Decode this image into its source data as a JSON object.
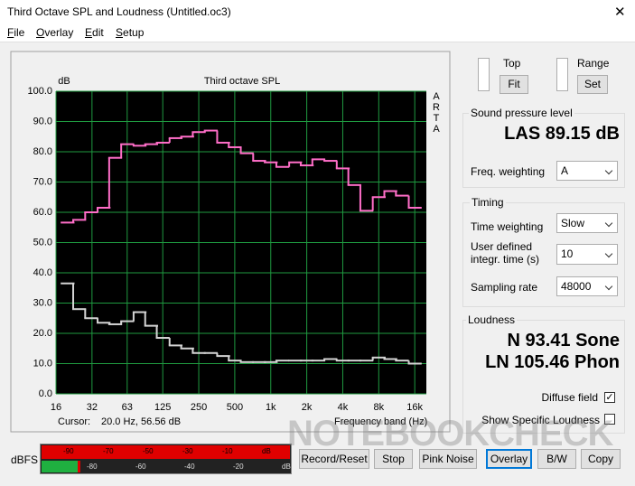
{
  "window": {
    "title": "Third Octave SPL and Loudness (Untitled.oc3)"
  },
  "menu": [
    "File",
    "Overlay",
    "Edit",
    "Setup"
  ],
  "chart_data": {
    "type": "line",
    "step": true,
    "title": "Third octave SPL",
    "y_label": "dB",
    "side_label": "ARTA",
    "x_label": "Frequency band (Hz)",
    "x_scale": "log",
    "grid": true,
    "background": "#000000",
    "grid_color": "#1f9a40",
    "x": [
      20,
      25,
      31.5,
      40,
      50,
      63,
      80,
      100,
      125,
      160,
      200,
      250,
      315,
      400,
      500,
      630,
      800,
      1000,
      1250,
      1600,
      2000,
      2500,
      3150,
      4000,
      5000,
      6300,
      8000,
      10000,
      12500,
      16000
    ],
    "series": [
      {
        "name": "SPL",
        "color": "#ff6ec8",
        "values": [
          56.6,
          57.5,
          60,
          61.5,
          78,
          82.5,
          82,
          82.5,
          83,
          84.5,
          85,
          86.5,
          87,
          83,
          81.5,
          79.5,
          77,
          76.5,
          75,
          76.5,
          75.5,
          77.5,
          77,
          74.5,
          69,
          60.5,
          65,
          67,
          65.5,
          61.5
        ]
      },
      {
        "name": "Noise floor",
        "color": "#d4d4d4",
        "values": [
          36.5,
          28,
          25,
          23.5,
          23,
          24,
          27,
          22.5,
          18.5,
          16,
          15,
          13.5,
          13.5,
          12.5,
          11,
          10.5,
          10.5,
          10.5,
          11,
          11,
          11,
          11,
          11.5,
          11,
          11,
          11,
          12,
          11.5,
          11,
          10
        ]
      }
    ],
    "xlim": [
      16,
      20000
    ],
    "xticks": [
      16,
      32,
      63,
      125,
      250,
      500,
      {
        "value": 1000,
        "label": "1k"
      },
      {
        "value": 2000,
        "label": "2k"
      },
      {
        "value": 4000,
        "label": "4k"
      },
      {
        "value": 8000,
        "label": "8k"
      },
      {
        "value": 16000,
        "label": "16k"
      }
    ],
    "ylim": [
      0,
      100
    ],
    "yticks": [
      {
        "value": 0,
        "label": "0.0"
      },
      {
        "value": 10,
        "label": "10.0"
      },
      {
        "value": 20,
        "label": "20.0"
      },
      {
        "value": 30,
        "label": "30.0"
      },
      {
        "value": 40,
        "label": "40.0"
      },
      {
        "value": 50,
        "label": "50.0"
      },
      {
        "value": 60,
        "label": "60.0"
      },
      {
        "value": 70,
        "label": "70.0"
      },
      {
        "value": 80,
        "label": "80.0"
      },
      {
        "value": 90,
        "label": "90.0"
      },
      {
        "value": 100,
        "label": "100.0"
      }
    ]
  },
  "cursor": {
    "label": "Cursor:",
    "value": "20.0 Hz, 56.56 dB"
  },
  "controls": {
    "top": "Top",
    "fit": "Fit",
    "range": "Range",
    "set": "Set"
  },
  "spl": {
    "group": "Sound pressure level",
    "reading": "LAS 89.15 dB",
    "weighting_label": "Freq. weighting",
    "weighting": "A"
  },
  "timing": {
    "group": "Timing",
    "time_weighting_label": "Time weighting",
    "time_weighting": "Slow",
    "integr_label_1": "User defined",
    "integr_label_2": "integr. time (s)",
    "integr_time": "10",
    "sampling_label": "Sampling rate",
    "sampling_rate": "48000"
  },
  "loudness": {
    "group": "Loudness",
    "sone": "N 93.41 Sone",
    "phon": "LN 105.46 Phon",
    "diffuse": "Diffuse field",
    "diffuse_checked": true,
    "specific": "Show Specific Loudness",
    "specific_checked": false
  },
  "meter": {
    "label": "dBFS",
    "top_ticks": [
      "-90",
      "-70",
      "-50",
      "-30",
      "-10",
      "dB"
    ],
    "bottom_ticks": [
      "-80",
      "-60",
      "-40",
      "-20",
      "dB"
    ]
  },
  "buttons": [
    "Record/Reset",
    "Stop",
    "Pink Noise",
    "Overlay",
    "B/W",
    "Copy"
  ],
  "watermark": "NOTEBOOKCHECK"
}
